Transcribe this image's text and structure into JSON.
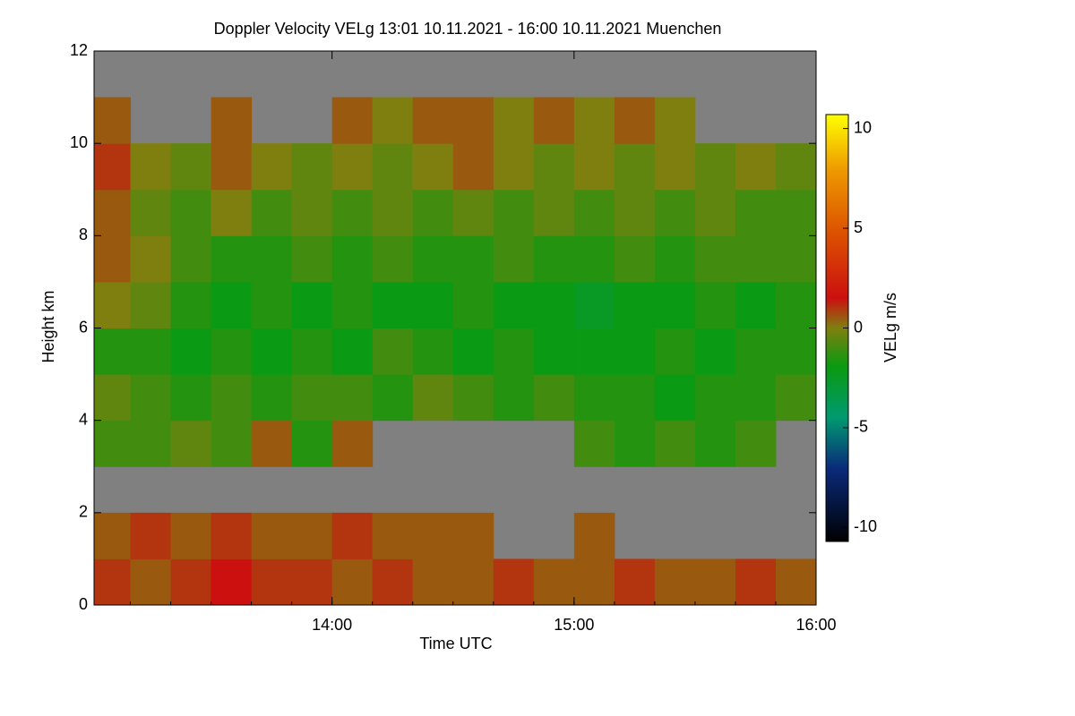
{
  "chart_data": {
    "type": "heatmap",
    "title": "Doppler Velocity VELg   13:01 10.11.2021 - 16:00 10.11.2021 Muenchen",
    "x_label": "Time UTC",
    "y_label": "Height km",
    "colorbar_label": "VELg m/s",
    "xlim": [
      "13:01",
      "16:00"
    ],
    "xticks": [
      "14:00",
      "15:00",
      "16:00"
    ],
    "ylim": [
      0,
      12
    ],
    "yticks": [
      0,
      2,
      4,
      6,
      8,
      10,
      12
    ],
    "zlim": [
      -10.7,
      10.7
    ],
    "zticks": [
      -10,
      -5,
      0,
      5,
      10
    ],
    "x_bins": [
      "13:01",
      "13:10",
      "13:20",
      "13:30",
      "13:40",
      "13:50",
      "14:00",
      "14:10",
      "14:20",
      "14:30",
      "14:40",
      "14:50",
      "15:00",
      "15:10",
      "15:20",
      "15:30",
      "15:40",
      "15:50",
      "16:00"
    ],
    "y_bins": [
      0,
      1,
      2,
      3,
      4,
      5,
      6,
      7,
      8,
      9,
      10,
      11,
      12
    ],
    "z": [
      [
        1,
        0.5,
        1,
        1.5,
        1,
        1,
        0.5,
        1,
        0.5,
        0.5,
        1,
        0.5,
        0.5,
        1,
        0.5,
        0.5,
        1,
        0.5
      ],
      [
        0.5,
        1,
        0.5,
        1,
        0.5,
        0.5,
        1,
        0.5,
        0.5,
        0.5,
        null,
        null,
        0.5,
        null,
        null,
        null,
        null,
        null
      ],
      [
        null,
        null,
        null,
        null,
        null,
        null,
        null,
        null,
        null,
        null,
        null,
        null,
        null,
        null,
        null,
        null,
        null,
        null
      ],
      [
        -1,
        -1,
        -0.5,
        -1,
        0.5,
        -1.5,
        0.5,
        null,
        null,
        null,
        null,
        null,
        -1,
        -1.5,
        -1,
        -1.5,
        -1,
        null
      ],
      [
        -0.5,
        -1,
        -1.5,
        -1,
        -1.5,
        -1,
        -1,
        -1.5,
        -0.5,
        -1,
        -1.5,
        -1,
        -1.5,
        -1.5,
        -2,
        -1.5,
        -1.5,
        -1
      ],
      [
        -1.5,
        -1.5,
        -2,
        -1.5,
        -2,
        -1.5,
        -2,
        -1,
        -1.5,
        -2,
        -1.5,
        -2,
        -2,
        -2,
        -1.5,
        -2,
        -1.5,
        -1.5
      ],
      [
        0,
        -0.5,
        -1.5,
        -2,
        -1.5,
        -2,
        -1.5,
        -2,
        -2,
        -1.5,
        -2,
        -2,
        -2.5,
        -2,
        -2,
        -1.5,
        -2,
        -1.5
      ],
      [
        0.5,
        0,
        -1,
        -1.5,
        -1.5,
        -1,
        -1.5,
        -1,
        -1.5,
        -1.5,
        -1,
        -1.5,
        -1.5,
        -1,
        -1.5,
        -1,
        -1,
        -1
      ],
      [
        0.5,
        -0.5,
        -1,
        0,
        -1,
        -0.5,
        -1,
        -0.5,
        -1,
        -0.5,
        -1,
        -0.5,
        -1,
        -0.5,
        -1,
        -0.5,
        -1,
        -1
      ],
      [
        1,
        0,
        -0.5,
        0.5,
        0,
        -0.5,
        0,
        -0.5,
        0,
        0.5,
        0,
        -0.5,
        0,
        -0.5,
        0,
        -0.5,
        0,
        -0.5
      ],
      [
        0.5,
        null,
        null,
        0.5,
        null,
        null,
        0.5,
        0,
        0.5,
        0.5,
        0,
        0.5,
        0,
        0.5,
        0,
        null,
        null,
        null
      ],
      [
        null,
        null,
        null,
        null,
        null,
        null,
        null,
        null,
        null,
        null,
        null,
        null,
        null,
        null,
        null,
        null,
        null,
        null
      ]
    ]
  }
}
